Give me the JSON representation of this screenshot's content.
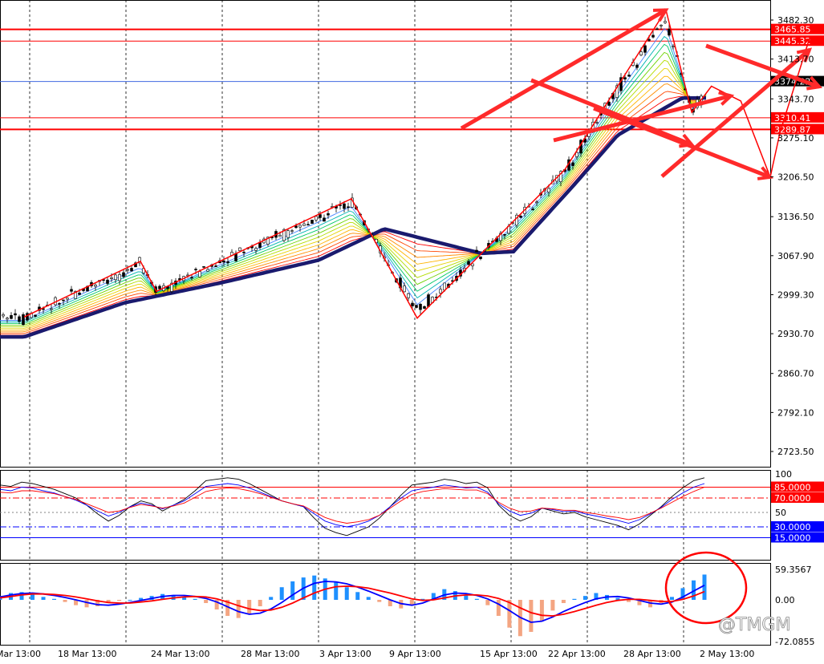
{
  "chart_data": [
    {
      "type": "line",
      "title": "",
      "subtitle": "",
      "panel": "price",
      "y_ticks": [
        "3482.30",
        "3413.70",
        "3343.70",
        "3275.10",
        "3206.50",
        "3136.50",
        "3067.90",
        "2999.30",
        "2930.70",
        "2860.70",
        "2792.10",
        "2723.50"
      ],
      "y_tick_values": [
        3482.3,
        3413.7,
        3343.7,
        3275.1,
        3206.5,
        3136.5,
        3067.9,
        2999.3,
        2930.7,
        2860.7,
        2792.1,
        2723.5
      ],
      "ylim": [
        2700,
        3500
      ],
      "x_tick_labels": [
        "Mar 13:00",
        "18 Mar 13:00",
        "24 Mar 13:00",
        "28 Mar 13:00",
        "3 Apr 13:00",
        "9 Apr 13:00",
        "15 Apr 13:00",
        "22 Apr 13:00",
        "28 Apr 13:00",
        "2 May 13:00"
      ],
      "horizontal_levels": [
        {
          "label": "3465.85",
          "value": 3465.85,
          "color": "#ff0000",
          "style": "solid-thick"
        },
        {
          "label": "3445.32",
          "value": 3445.32,
          "color": "#ff0000",
          "style": "solid"
        },
        {
          "label": "3374.22",
          "value": 3374.22,
          "color": "#4169e1",
          "style": "solid",
          "current_price": true
        },
        {
          "label": "3310.41",
          "value": 3310.41,
          "color": "#ff0000",
          "style": "solid"
        },
        {
          "label": "3289.87",
          "value": 3289.87,
          "color": "#ff0000",
          "style": "solid-thick"
        }
      ],
      "zigzag_points": [
        {
          "x": "12 Mar",
          "y": 2960
        },
        {
          "x": "19 Mar",
          "y": 3058
        },
        {
          "x": "20 Mar",
          "y": 3005
        },
        {
          "x": "30 Mar",
          "y": 3168
        },
        {
          "x": "3 Apr",
          "y": 2958
        },
        {
          "x": "14 Apr",
          "y": 3220
        },
        {
          "x": "21 Apr",
          "y": 3500
        },
        {
          "x": "23 Apr",
          "y": 3320
        },
        {
          "x": "25 Apr",
          "y": 3366
        },
        {
          "x": "28 Apr",
          "y": 3340
        },
        {
          "x": "1 May",
          "y": 3206
        },
        {
          "x": "2 May",
          "y": 3285
        },
        {
          "x": "5 May",
          "y": 3450
        }
      ],
      "moving_average_baseline": [
        {
          "x": "12 Mar",
          "y": 2925
        },
        {
          "x": "18 Mar",
          "y": 2985
        },
        {
          "x": "24 Mar",
          "y": 3020
        },
        {
          "x": "28 Mar",
          "y": 3060
        },
        {
          "x": "1 Apr",
          "y": 3115
        },
        {
          "x": "7 Apr",
          "y": 3072
        },
        {
          "x": "9 Apr",
          "y": 3075
        },
        {
          "x": "15 Apr",
          "y": 3195
        },
        {
          "x": "18 Apr",
          "y": 3280
        },
        {
          "x": "22 Apr",
          "y": 3345
        },
        {
          "x": "28 Apr",
          "y": 3346
        },
        {
          "x": "2 May",
          "y": 3283
        },
        {
          "x": "5 May",
          "y": 3290
        }
      ],
      "arrow_tips": [
        {
          "x": "21 Apr",
          "y": 3500
        },
        {
          "x": "23 Apr",
          "y": 3263
        },
        {
          "x": "27 Apr",
          "y": 3349
        },
        {
          "x": "1 May",
          "y": 3206
        },
        {
          "x": "5 May",
          "y": 3430
        },
        {
          "x": "6 May",
          "y": 3365
        }
      ]
    },
    {
      "type": "line",
      "panel": "oscillator",
      "ylim": [
        0,
        100
      ],
      "y_ticks": [
        "100",
        "50"
      ],
      "levels": [
        {
          "label": "85.0000",
          "value": 85,
          "color": "#ff0000",
          "style": "solid"
        },
        {
          "label": "70.0000",
          "value": 70,
          "color": "#ff0000",
          "style": "dashdot"
        },
        {
          "label": "50",
          "value": 50,
          "color": "#808080",
          "style": "dotted"
        },
        {
          "label": "30.0000",
          "value": 30,
          "color": "#0000ff",
          "style": "dashdot"
        },
        {
          "label": "15.0000",
          "value": 15,
          "color": "#0000ff",
          "style": "solid"
        }
      ],
      "series": [
        {
          "color": "#000000",
          "values": [
            88,
            86,
            92,
            90,
            86,
            82,
            76,
            70,
            60,
            48,
            38,
            46,
            58,
            66,
            62,
            52,
            60,
            68,
            80,
            94,
            96,
            98,
            96,
            90,
            82,
            74,
            66,
            62,
            58,
            42,
            28,
            22,
            18,
            24,
            30,
            42,
            58,
            74,
            88,
            90,
            92,
            96,
            94,
            90,
            92,
            84,
            60,
            46,
            38,
            44,
            56,
            52,
            48,
            50,
            44,
            40,
            36,
            32,
            26,
            34,
            46,
            58,
            72,
            84,
            94,
            98
          ]
        },
        {
          "color": "#0000ff",
          "values": [
            82,
            80,
            85,
            84,
            80,
            77,
            72,
            67,
            60,
            52,
            45,
            50,
            58,
            63,
            60,
            55,
            60,
            66,
            76,
            86,
            88,
            90,
            88,
            84,
            78,
            72,
            66,
            62,
            58,
            48,
            38,
            33,
            30,
            33,
            38,
            46,
            58,
            70,
            80,
            83,
            85,
            88,
            86,
            84,
            85,
            78,
            62,
            52,
            46,
            49,
            56,
            54,
            51,
            52,
            48,
            45,
            42,
            39,
            35,
            40,
            48,
            57,
            68,
            77,
            85,
            90
          ]
        },
        {
          "color": "#ff0000",
          "values": [
            78,
            77,
            80,
            80,
            78,
            76,
            72,
            68,
            62,
            56,
            50,
            52,
            57,
            61,
            59,
            56,
            59,
            63,
            71,
            79,
            82,
            84,
            83,
            80,
            76,
            71,
            66,
            62,
            59,
            51,
            43,
            38,
            35,
            37,
            40,
            46,
            56,
            66,
            75,
            79,
            81,
            83,
            82,
            81,
            81,
            76,
            64,
            56,
            51,
            52,
            56,
            55,
            53,
            53,
            50,
            48,
            45,
            43,
            40,
            43,
            49,
            56,
            64,
            72,
            79,
            85
          ]
        }
      ]
    },
    {
      "type": "bar",
      "panel": "macd",
      "ylim": [
        -72.0855,
        59.3567
      ],
      "y_ticks": [
        "59.3567",
        "0.00",
        "-72.0855"
      ],
      "histogram": [
        8,
        14,
        16,
        12,
        6,
        2,
        -4,
        -10,
        -14,
        -12,
        -6,
        -2,
        0,
        4,
        8,
        12,
        10,
        6,
        2,
        -6,
        -18,
        -30,
        -34,
        -26,
        -12,
        6,
        26,
        38,
        46,
        50,
        44,
        36,
        26,
        16,
        6,
        -4,
        -12,
        -16,
        -10,
        2,
        14,
        22,
        18,
        10,
        2,
        -10,
        -30,
        -52,
        -68,
        -60,
        -40,
        -20,
        -6,
        2,
        8,
        14,
        10,
        4,
        -4,
        -10,
        -14,
        -6,
        6,
        24,
        40,
        52
      ],
      "series": [
        {
          "color": "#0000ff",
          "values": [
            6,
            10,
            13,
            14,
            12,
            9,
            5,
            0,
            -5,
            -9,
            -10,
            -8,
            -5,
            -1,
            3,
            7,
            9,
            9,
            7,
            3,
            -4,
            -13,
            -22,
            -27,
            -25,
            -17,
            -5,
            10,
            24,
            34,
            38,
            37,
            33,
            26,
            18,
            9,
            0,
            -7,
            -10,
            -6,
            2,
            10,
            14,
            13,
            9,
            2,
            -8,
            -20,
            -33,
            -42,
            -40,
            -32,
            -22,
            -13,
            -5,
            2,
            6,
            7,
            4,
            -1,
            -6,
            -8,
            -4,
            6,
            18,
            30
          ]
        },
        {
          "color": "#ff0000",
          "values": [
            4,
            7,
            10,
            12,
            12,
            11,
            9,
            6,
            2,
            -2,
            -5,
            -6,
            -6,
            -4,
            -2,
            1,
            4,
            6,
            7,
            6,
            2,
            -4,
            -11,
            -17,
            -20,
            -19,
            -14,
            -6,
            4,
            14,
            22,
            27,
            28,
            27,
            24,
            19,
            14,
            8,
            2,
            -1,
            0,
            4,
            8,
            10,
            10,
            8,
            3,
            -5,
            -15,
            -24,
            -29,
            -30,
            -27,
            -22,
            -16,
            -10,
            -5,
            -1,
            1,
            1,
            -1,
            -3,
            -3,
            1,
            8,
            17
          ]
        }
      ]
    }
  ],
  "watermark": "@TMGM"
}
